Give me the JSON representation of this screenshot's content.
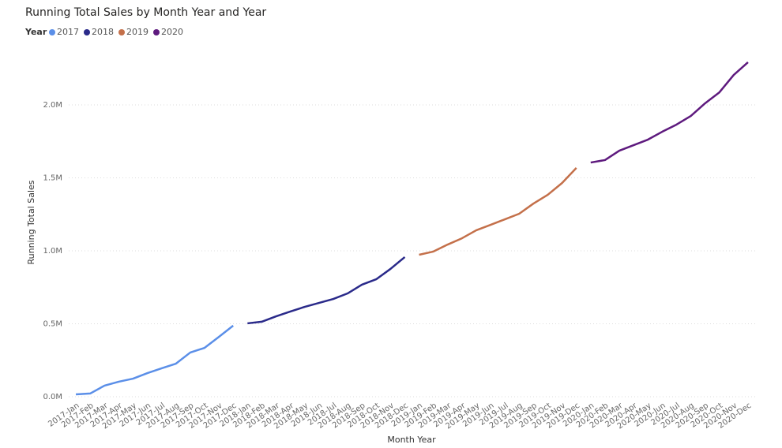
{
  "chart_data": {
    "type": "line",
    "title": "Running Total Sales by Month Year and Year",
    "x_label": "Month Year",
    "y_label": "Running Total Sales",
    "legend_title": "Year",
    "categories": [
      "2017-Jan",
      "2017-Feb",
      "2017-Mar",
      "2017-Apr",
      "2017-May",
      "2017-Jun",
      "2017-Jul",
      "2017-Aug",
      "2017-Sep",
      "2017-Oct",
      "2017-Nov",
      "2017-Dec",
      "2018-Jan",
      "2018-Feb",
      "2018-Mar",
      "2018-Apr",
      "2018-May",
      "2018-Jun",
      "2018-Jul",
      "2018-Aug",
      "2018-Sep",
      "2018-Oct",
      "2018-Nov",
      "2018-Dec",
      "2019-Jan",
      "2019-Feb",
      "2019-Mar",
      "2019-Apr",
      "2019-May",
      "2019-Jun",
      "2019-Jul",
      "2019-Aug",
      "2019-Sep",
      "2019-Oct",
      "2019-Nov",
      "2019-Dec",
      "2020-Jan",
      "2020-Feb",
      "2020-Mar",
      "2020-Apr",
      "2020-May",
      "2020-Jun",
      "2020-Jul",
      "2020-Aug",
      "2020-Sep",
      "2020-Oct",
      "2020-Nov",
      "2020-Dec"
    ],
    "series": [
      {
        "name": "2017",
        "color": "#5b8fe8",
        "values": [
          16000,
          22000,
          76000,
          103000,
          124000,
          162000,
          195000,
          227000,
          303000,
          335000,
          410000,
          487000,
          null,
          null,
          null,
          null,
          null,
          null,
          null,
          null,
          null,
          null,
          null,
          null,
          null,
          null,
          null,
          null,
          null,
          null,
          null,
          null,
          null,
          null,
          null,
          null,
          null,
          null,
          null,
          null,
          null,
          null,
          null,
          null,
          null,
          null,
          null,
          null
        ]
      },
      {
        "name": "2018",
        "color": "#2a2a8a",
        "values": [
          null,
          null,
          null,
          null,
          null,
          null,
          null,
          null,
          null,
          null,
          null,
          null,
          503000,
          514000,
          551000,
          584000,
          616000,
          643000,
          670000,
          708000,
          768000,
          805000,
          876000,
          957000,
          null,
          null,
          null,
          null,
          null,
          null,
          null,
          null,
          null,
          null,
          null,
          null,
          null,
          null,
          null,
          null,
          null,
          null,
          null,
          null,
          null,
          null,
          null,
          null
        ]
      },
      {
        "name": "2019",
        "color": "#c4704a",
        "values": [
          null,
          null,
          null,
          null,
          null,
          null,
          null,
          null,
          null,
          null,
          null,
          null,
          null,
          null,
          null,
          null,
          null,
          null,
          null,
          null,
          null,
          null,
          null,
          null,
          973000,
          995000,
          1043000,
          1086000,
          1141000,
          1178000,
          1216000,
          1254000,
          1324000,
          1384000,
          1465000,
          1568000,
          null,
          null,
          null,
          null,
          null,
          null,
          null,
          null,
          null,
          null,
          null,
          null
        ]
      },
      {
        "name": "2020",
        "color": "#5e1a7e",
        "values": [
          null,
          null,
          null,
          null,
          null,
          null,
          null,
          null,
          null,
          null,
          null,
          null,
          null,
          null,
          null,
          null,
          null,
          null,
          null,
          null,
          null,
          null,
          null,
          null,
          null,
          null,
          null,
          null,
          null,
          null,
          null,
          null,
          null,
          null,
          null,
          null,
          1605000,
          1622000,
          1686000,
          1724000,
          1762000,
          1816000,
          1865000,
          1924000,
          2011000,
          2086000,
          2205000,
          2292000
        ]
      }
    ],
    "ylim": [
      0,
      2400000
    ],
    "yticks": [
      {
        "value": 0,
        "label": "0.0M"
      },
      {
        "value": 500000,
        "label": "0.5M"
      },
      {
        "value": 1000000,
        "label": "1.0M"
      },
      {
        "value": 1500000,
        "label": "1.5M"
      },
      {
        "value": 2000000,
        "label": "2.0M"
      }
    ],
    "grid": true
  }
}
